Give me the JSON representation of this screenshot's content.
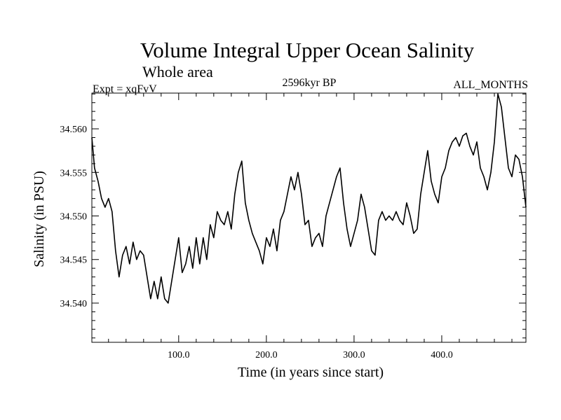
{
  "chart_data": {
    "type": "line",
    "title": "Volume Integral Upper Ocean Salinity",
    "subtitle": "Whole area",
    "header_left": "Expt = xqFvV",
    "header_center": "2596kyr BP",
    "header_right": "ALL_MONTHS",
    "xlabel": "Time (in years since start)",
    "ylabel": "Salinity (in PSU)",
    "xlim": [
      1,
      496
    ],
    "ylim": [
      34.5355,
      34.5641
    ],
    "xticks": [
      100,
      200,
      300,
      400
    ],
    "xtick_labels": [
      "100.0",
      "200.0",
      "300.0",
      "400.0"
    ],
    "yticks": [
      34.54,
      34.545,
      34.55,
      34.555,
      34.56
    ],
    "ytick_labels": [
      "34.540",
      "34.545",
      "34.550",
      "34.555",
      "34.560"
    ],
    "grid": false,
    "series": [
      {
        "name": "Salinity",
        "x": [
          1,
          4,
          8,
          12,
          16,
          20,
          24,
          28,
          32,
          36,
          40,
          44,
          48,
          52,
          56,
          60,
          64,
          68,
          72,
          76,
          80,
          84,
          88,
          92,
          96,
          100,
          104,
          108,
          112,
          116,
          120,
          124,
          128,
          132,
          136,
          140,
          144,
          148,
          152,
          156,
          160,
          164,
          168,
          172,
          176,
          180,
          184,
          188,
          192,
          196,
          200,
          204,
          208,
          212,
          216,
          220,
          224,
          228,
          232,
          236,
          240,
          244,
          248,
          252,
          256,
          260,
          264,
          268,
          272,
          276,
          280,
          284,
          288,
          292,
          296,
          300,
          304,
          308,
          312,
          316,
          320,
          324,
          328,
          332,
          336,
          340,
          344,
          348,
          352,
          356,
          360,
          364,
          368,
          372,
          376,
          380,
          384,
          388,
          392,
          396,
          400,
          404,
          408,
          412,
          416,
          420,
          424,
          428,
          432,
          436,
          440,
          444,
          448,
          452,
          456,
          460,
          464,
          468,
          472,
          476,
          480,
          484,
          488,
          492,
          496
        ],
        "values": [
          34.559,
          34.5555,
          34.554,
          34.552,
          34.551,
          34.552,
          34.5505,
          34.546,
          34.543,
          34.5455,
          34.5465,
          34.5445,
          34.547,
          34.545,
          34.546,
          34.5455,
          34.543,
          34.5405,
          34.5425,
          34.5405,
          34.543,
          34.5405,
          34.54,
          34.5425,
          34.545,
          34.5475,
          34.5435,
          34.5445,
          34.5465,
          34.544,
          34.5475,
          34.5445,
          34.5475,
          34.545,
          34.549,
          34.5475,
          34.5505,
          34.5495,
          34.549,
          34.5505,
          34.5485,
          34.5525,
          34.555,
          34.5563,
          34.5515,
          34.5495,
          34.548,
          34.547,
          34.546,
          34.5445,
          34.5475,
          34.5465,
          34.5485,
          34.546,
          34.5495,
          34.5505,
          34.5525,
          34.5545,
          34.553,
          34.555,
          34.5525,
          34.549,
          34.5495,
          34.5465,
          34.5475,
          34.548,
          34.5465,
          34.55,
          34.5515,
          34.553,
          34.5545,
          34.5555,
          34.5515,
          34.5485,
          34.5465,
          34.548,
          34.5495,
          34.5525,
          34.551,
          34.5485,
          34.546,
          34.5455,
          34.5495,
          34.5505,
          34.5495,
          34.55,
          34.5495,
          34.5505,
          34.5495,
          34.549,
          34.5515,
          34.55,
          34.548,
          34.5485,
          34.5525,
          34.555,
          34.5575,
          34.554,
          34.5525,
          34.5515,
          34.5545,
          34.5555,
          34.5575,
          34.5585,
          34.559,
          34.558,
          34.5592,
          34.5595,
          34.558,
          34.557,
          34.5585,
          34.5555,
          34.5545,
          34.553,
          34.555,
          34.5585,
          34.564,
          34.5625,
          34.559,
          34.5555,
          34.5545,
          34.557,
          34.5565,
          34.5545,
          34.551
        ]
      }
    ]
  }
}
